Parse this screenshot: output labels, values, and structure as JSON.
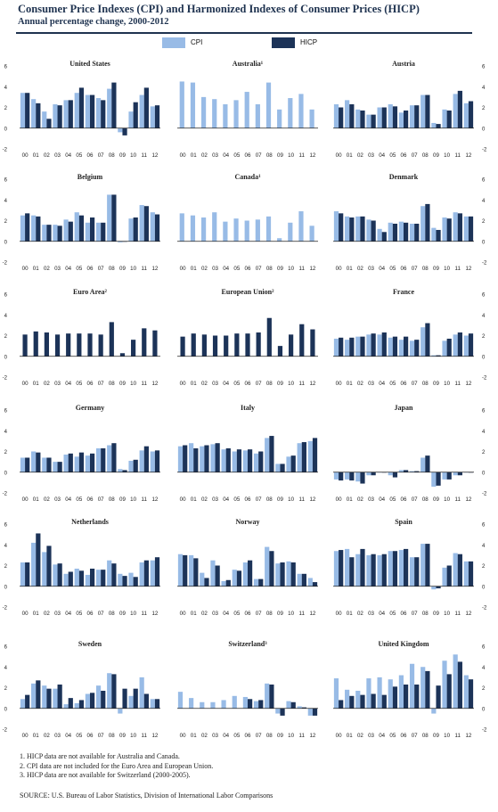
{
  "header": {
    "title": "Consumer Price Indexes (CPI) and Harmonized  Indexes of Consumer Prices  (HICP)",
    "subtitle": "Annual percentage change, 2000-2012"
  },
  "legend": {
    "cpi_label": "CPI",
    "hicp_label": "HICP"
  },
  "colors": {
    "cpi": "#98bbe6",
    "hicp": "#1c3358",
    "axis": "#222222",
    "title": "#1f3350"
  },
  "notes": [
    "1. HICP data are not available for Australia and Canada.",
    "2. CPI data are not included for the Euro Area and European Union.",
    "3. HICP data are not available for Switzerland (2000-2005)."
  ],
  "source": "SOURCE: U.S. Bureau of Labor Statistics, Division of International Labor Comparisons",
  "chart_data": {
    "type": "bar",
    "categories": [
      "00",
      "01",
      "02",
      "03",
      "04",
      "05",
      "06",
      "07",
      "08",
      "09",
      "10",
      "11",
      "12"
    ],
    "ylim": [
      -2,
      6
    ],
    "yticks": [
      "-2",
      "0",
      "2",
      "4",
      "6"
    ],
    "panels": [
      {
        "title": "United States",
        "cpi": [
          3.4,
          2.8,
          1.6,
          2.3,
          2.7,
          3.4,
          3.2,
          2.9,
          3.8,
          -0.4,
          1.6,
          3.2,
          2.1
        ],
        "hicp": [
          3.4,
          2.4,
          0.9,
          2.2,
          2.7,
          3.9,
          3.2,
          2.7,
          4.4,
          -0.7,
          2.5,
          3.9,
          2.2
        ]
      },
      {
        "title": "Australia¹",
        "cpi": [
          4.5,
          4.4,
          3.0,
          2.8,
          2.3,
          2.7,
          3.5,
          2.3,
          4.4,
          1.8,
          2.9,
          3.3,
          1.8
        ],
        "hicp": null
      },
      {
        "title": "Austria",
        "cpi": [
          2.3,
          2.7,
          1.8,
          1.3,
          2.0,
          2.3,
          1.5,
          2.2,
          3.2,
          0.5,
          1.8,
          3.3,
          2.4
        ],
        "hicp": [
          2.0,
          2.3,
          1.7,
          1.3,
          2.0,
          2.1,
          1.7,
          2.2,
          3.2,
          0.4,
          1.7,
          3.6,
          2.6
        ]
      },
      {
        "title": "Belgium",
        "cpi": [
          2.5,
          2.5,
          1.6,
          1.6,
          2.1,
          2.8,
          1.8,
          1.8,
          4.5,
          -0.1,
          2.2,
          3.5,
          2.8
        ],
        "hicp": [
          2.7,
          2.4,
          1.6,
          1.5,
          1.9,
          2.5,
          2.3,
          1.8,
          4.5,
          0.0,
          2.3,
          3.4,
          2.6
        ]
      },
      {
        "title": "Canada¹",
        "cpi": [
          2.7,
          2.5,
          2.3,
          2.8,
          1.9,
          2.2,
          2.0,
          2.1,
          2.4,
          0.3,
          1.8,
          2.9,
          1.5
        ],
        "hicp": null
      },
      {
        "title": "Denmark",
        "cpi": [
          2.9,
          2.4,
          2.4,
          2.1,
          1.2,
          1.8,
          1.9,
          1.7,
          3.4,
          1.3,
          2.3,
          2.8,
          2.4
        ],
        "hicp": [
          2.7,
          2.3,
          2.4,
          2.0,
          0.9,
          1.7,
          1.8,
          1.7,
          3.6,
          1.1,
          2.2,
          2.7,
          2.4
        ]
      },
      {
        "title": "Euro Area²",
        "cpi": null,
        "hicp": [
          2.1,
          2.4,
          2.3,
          2.1,
          2.2,
          2.2,
          2.2,
          2.1,
          3.3,
          0.3,
          1.6,
          2.7,
          2.5
        ]
      },
      {
        "title": "European Union²",
        "cpi": null,
        "hicp": [
          1.9,
          2.2,
          2.1,
          2.0,
          2.0,
          2.2,
          2.2,
          2.3,
          3.7,
          1.0,
          2.1,
          3.1,
          2.6
        ]
      },
      {
        "title": "France",
        "cpi": [
          1.7,
          1.6,
          1.9,
          2.1,
          2.1,
          1.8,
          1.6,
          1.5,
          2.8,
          0.1,
          1.5,
          2.1,
          2.0
        ],
        "hicp": [
          1.8,
          1.8,
          1.9,
          2.2,
          2.3,
          1.9,
          1.9,
          1.6,
          3.2,
          0.1,
          1.7,
          2.3,
          2.2
        ]
      },
      {
        "title": "Germany",
        "cpi": [
          1.4,
          2.0,
          1.4,
          1.0,
          1.7,
          1.5,
          1.6,
          2.3,
          2.6,
          0.3,
          1.1,
          2.1,
          2.0
        ],
        "hicp": [
          1.4,
          1.9,
          1.4,
          1.0,
          1.8,
          1.9,
          1.8,
          2.3,
          2.8,
          0.2,
          1.2,
          2.5,
          2.1
        ]
      },
      {
        "title": "Italy",
        "cpi": [
          2.5,
          2.8,
          2.5,
          2.7,
          2.2,
          2.0,
          2.1,
          1.8,
          3.3,
          0.8,
          1.5,
          2.8,
          3.0
        ],
        "hicp": [
          2.6,
          2.3,
          2.6,
          2.8,
          2.3,
          2.2,
          2.2,
          2.0,
          3.5,
          0.8,
          1.6,
          2.9,
          3.3
        ]
      },
      {
        "title": "Japan",
        "cpi": [
          -0.7,
          -0.7,
          -0.9,
          -0.3,
          0.0,
          -0.3,
          0.2,
          0.1,
          1.4,
          -1.4,
          -0.7,
          -0.3,
          0.0
        ],
        "hicp": [
          -0.8,
          -0.8,
          -1.1,
          -0.3,
          0.0,
          -0.5,
          0.2,
          0.1,
          1.6,
          -1.3,
          -0.7,
          -0.3,
          0.0
        ]
      },
      {
        "title": "Netherlands",
        "cpi": [
          2.3,
          4.2,
          3.3,
          2.1,
          1.2,
          1.7,
          1.1,
          1.6,
          2.5,
          1.2,
          1.3,
          2.3,
          2.5
        ],
        "hicp": [
          2.3,
          5.1,
          3.9,
          2.2,
          1.4,
          1.5,
          1.7,
          1.6,
          2.2,
          1.0,
          0.9,
          2.5,
          2.8
        ]
      },
      {
        "title": "Norway",
        "cpi": [
          3.1,
          3.0,
          1.3,
          2.5,
          0.5,
          1.6,
          2.3,
          0.7,
          3.8,
          2.2,
          2.4,
          1.2,
          0.8
        ],
        "hicp": [
          3.0,
          2.7,
          0.8,
          2.0,
          0.6,
          1.5,
          2.5,
          0.7,
          3.4,
          2.3,
          2.3,
          1.2,
          0.4
        ]
      },
      {
        "title": "Spain",
        "cpi": [
          3.4,
          3.6,
          3.1,
          3.0,
          3.0,
          3.4,
          3.5,
          2.8,
          4.1,
          -0.3,
          1.8,
          3.2,
          2.4
        ],
        "hicp": [
          3.5,
          2.8,
          3.6,
          3.1,
          3.1,
          3.4,
          3.6,
          2.8,
          4.1,
          -0.2,
          2.0,
          3.1,
          2.4
        ]
      },
      {
        "title": "Sweden",
        "cpi": [
          0.9,
          2.4,
          2.2,
          1.9,
          0.4,
          0.5,
          1.4,
          2.2,
          3.4,
          -0.5,
          1.2,
          3.0,
          0.9
        ],
        "hicp": [
          1.3,
          2.7,
          1.9,
          2.3,
          1.0,
          0.8,
          1.5,
          1.7,
          3.3,
          1.9,
          1.9,
          1.4,
          0.9
        ]
      },
      {
        "title": "Switzerland³",
        "cpi": [
          1.6,
          1.0,
          0.6,
          0.6,
          0.8,
          1.2,
          1.1,
          0.7,
          2.4,
          -0.5,
          0.7,
          0.2,
          -0.7
        ],
        "hicp": [
          null,
          null,
          null,
          null,
          null,
          null,
          0.9,
          0.8,
          2.3,
          -0.7,
          0.6,
          0.1,
          -0.7
        ]
      },
      {
        "title": "United Kingdom",
        "cpi": [
          2.9,
          1.8,
          1.7,
          2.9,
          3.0,
          2.8,
          3.2,
          4.3,
          4.0,
          -0.5,
          4.6,
          5.2,
          3.2
        ],
        "hicp": [
          0.8,
          1.2,
          1.3,
          1.4,
          1.3,
          2.1,
          2.3,
          2.3,
          3.6,
          2.2,
          3.3,
          4.5,
          2.8
        ]
      }
    ]
  }
}
